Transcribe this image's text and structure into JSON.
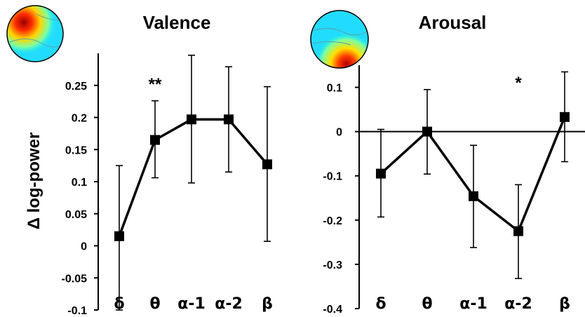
{
  "chart_data": [
    {
      "type": "line",
      "title": "Valence",
      "ylabel": "Δ log-power",
      "categories": [
        "δ",
        "θ",
        "α-1",
        "α-2",
        "β"
      ],
      "values": [
        0.015,
        0.165,
        0.197,
        0.197,
        0.127
      ],
      "error_low": [
        -0.1,
        0.106,
        0.098,
        0.115,
        0.007
      ],
      "error_high": [
        0.125,
        0.226,
        0.297,
        0.279,
        0.248
      ],
      "ylim": [
        -0.1,
        0.3
      ],
      "yticks": [
        "-0.1",
        "-0.05",
        "0",
        "0.05",
        "0.1",
        "0.15",
        "0.2",
        "0.25"
      ],
      "significance": [
        {
          "category": "θ",
          "label": "**"
        }
      ],
      "grid": false
    },
    {
      "type": "line",
      "title": "Arousal",
      "categories": [
        "δ",
        "θ",
        "α-1",
        "α-2",
        "β"
      ],
      "values": [
        -0.095,
        0.0,
        -0.146,
        -0.225,
        0.033
      ],
      "error_low": [
        -0.193,
        -0.096,
        -0.262,
        -0.332,
        -0.068
      ],
      "error_high": [
        0.005,
        0.095,
        -0.031,
        -0.12,
        0.135
      ],
      "ylim": [
        -0.4,
        0.15
      ],
      "yticks": [
        "-0.4",
        "-0.3",
        "-0.2",
        "-0.1",
        "0",
        "0.1"
      ],
      "significance": [
        {
          "category": "α-2",
          "label": "*"
        }
      ],
      "grid": false
    }
  ],
  "colors": {
    "line": "#000000",
    "marker": "#000000"
  },
  "topomaps": [
    "valence-topomap",
    "arousal-topomap"
  ]
}
